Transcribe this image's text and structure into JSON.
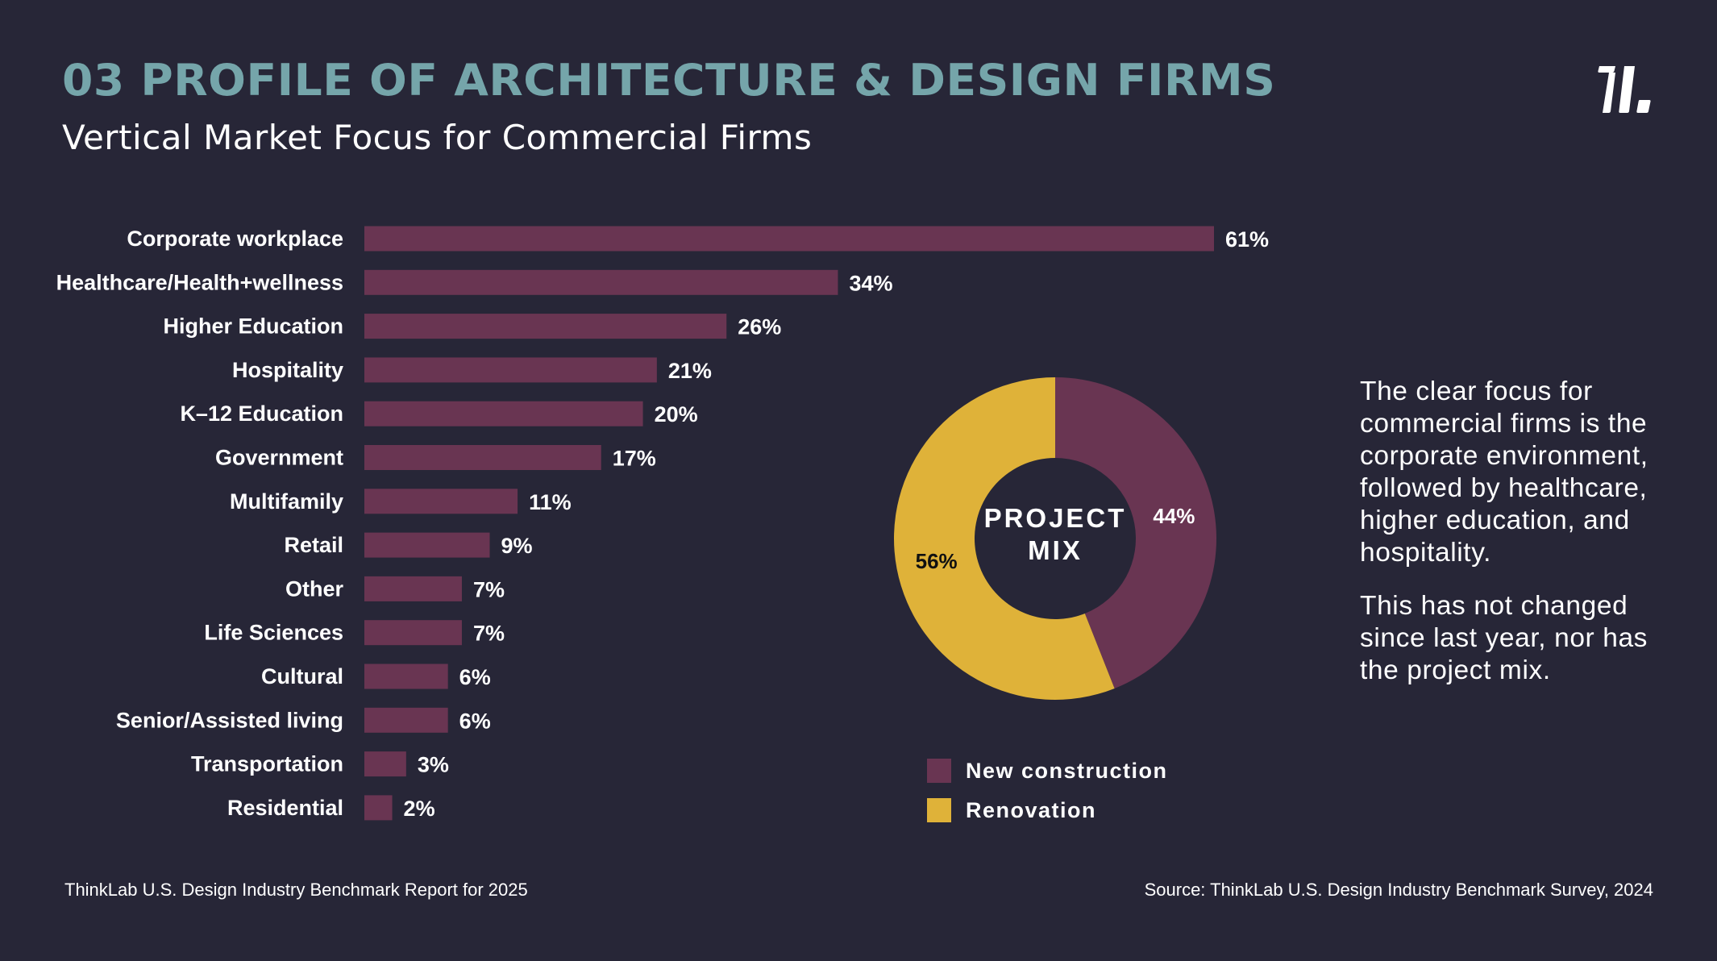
{
  "header": {
    "title": "03 PROFILE OF ARCHITECTURE & DESIGN FIRMS",
    "subtitle": "Vertical Market Focus for Commercial Firms",
    "logo_icon": "thinklab-logo-icon"
  },
  "colors": {
    "background": "#272637",
    "title": "#75a5aa",
    "bar": "#693552",
    "new_construction": "#693552",
    "renovation": "#dfb239",
    "text": "#ffffff",
    "dark_label": "#111111"
  },
  "chart_data": [
    {
      "type": "bar",
      "orientation": "horizontal",
      "title": "Vertical Market Focus for Commercial Firms",
      "xlabel": "",
      "ylabel": "",
      "unit": "%",
      "xlim": [
        0,
        61
      ],
      "grid": false,
      "categories": [
        "Corporate workplace",
        "Healthcare/Health+wellness",
        "Higher Education",
        "Hospitality",
        "K–12 Education",
        "Government",
        "Multifamily",
        "Retail",
        "Other",
        "Life Sciences",
        "Cultural",
        "Senior/Assisted living",
        "Transportation",
        "Residential"
      ],
      "values": [
        61,
        34,
        26,
        21,
        20,
        17,
        11,
        9,
        7,
        7,
        6,
        6,
        3,
        2
      ],
      "value_labels": [
        "61%",
        "34%",
        "26%",
        "21%",
        "20%",
        "17%",
        "11%",
        "9%",
        "7%",
        "7%",
        "6%",
        "6%",
        "3%",
        "2%"
      ]
    },
    {
      "type": "pie",
      "donut": true,
      "title": "PROJECT MIX",
      "center_label_lines": [
        "PROJECT",
        "MIX"
      ],
      "slices": [
        {
          "name": "New construction",
          "value": 44,
          "label": "44%",
          "color": "#693552",
          "label_color": "#ffffff"
        },
        {
          "name": "Renovation",
          "value": 56,
          "label": "56%",
          "color": "#dfb239",
          "label_color": "#111111"
        }
      ],
      "start": "top",
      "direction": "clockwise",
      "legend": {
        "placement": "bottom",
        "entries": [
          "New construction",
          "Renovation"
        ]
      }
    }
  ],
  "legend": {
    "items": [
      {
        "label": "New construction",
        "color": "#693552"
      },
      {
        "label": "Renovation",
        "color": "#dfb239"
      }
    ]
  },
  "commentary": {
    "paragraphs": [
      "The clear focus for commercial firms is the corporate environment, followed by healthcare, higher education, and hospitality.",
      "This has not changed since last year, nor has the project mix."
    ]
  },
  "footer": {
    "left": "ThinkLab U.S. Design Industry Benchmark Report for 2025",
    "right": "Source: ThinkLab U.S. Design Industry Benchmark Survey, 2024"
  }
}
